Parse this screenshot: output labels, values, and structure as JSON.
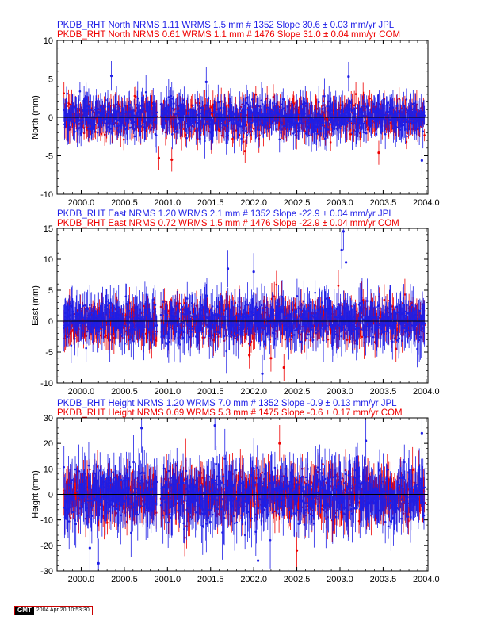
{
  "colors": {
    "jpl": "#1e1ee6",
    "com": "#ee0000",
    "axis": "#000000"
  },
  "gmt": {
    "logo": "GMT",
    "timestamp": "2004 Apr 20 10:53:30"
  },
  "chart_data": [
    {
      "type": "scatter",
      "id": "north",
      "title_jpl": "PKDB_RHT North NRMS 1.11 WRMS  1.5 mm # 1352 Slope   30.6 ±  0.03 mm/yr JPL",
      "title_com": "PKDB_RHT North NRMS 0.61 WRMS  1.1 mm # 1476 Slope   31.0 ±  0.04 mm/yr COM",
      "ylabel": "North (mm)",
      "xlim": [
        1999.72,
        2004.02
      ],
      "ylim": [
        -10,
        10
      ],
      "yticks": [
        -10,
        -5,
        0,
        5,
        10
      ],
      "xticks": [
        "2000.0",
        "2000.5",
        "2001.0",
        "2001.5",
        "2002.0",
        "2002.5",
        "2003.0",
        "2003.5",
        "2004.0"
      ],
      "x_start": 1999.8,
      "x_end": 2003.98,
      "gap": [
        1999.85,
        2000.92
      ],
      "series": [
        {
          "name": "COM",
          "scatter_rms": 1.5,
          "errorbar": 1.3,
          "extremes": [
            [
              2000.9,
              -5.3
            ],
            [
              2001.05,
              -5.5
            ],
            [
              2001.9,
              -4.4
            ],
            [
              2003.45,
              -4.6
            ]
          ]
        },
        {
          "name": "JPL",
          "scatter_rms": 1.5,
          "errorbar": 1.6,
          "extremes": [
            [
              2000.35,
              5.4
            ],
            [
              2001.45,
              4.6
            ],
            [
              2003.1,
              5.3
            ],
            [
              2003.95,
              -5.6
            ]
          ]
        }
      ]
    },
    {
      "type": "scatter",
      "id": "east",
      "title_jpl": "PKDB_RHT East NRMS 1.20 WRMS  2.1 mm # 1352 Slope  -22.9 ±  0.04 mm/yr JPL",
      "title_com": "PKDB_RHT East NRMS 0.72 WRMS  1.5 mm # 1476 Slope  -22.9 ±  0.04 mm/yr COM",
      "ylabel": "East (mm)",
      "xlim": [
        1999.72,
        2004.02
      ],
      "ylim": [
        -10,
        15
      ],
      "yticks": [
        -10,
        -5,
        0,
        5,
        10,
        15
      ],
      "xticks": [
        "2000.0",
        "2000.5",
        "2001.0",
        "2001.5",
        "2002.0",
        "2002.5",
        "2003.0",
        "2003.5",
        "2004.0"
      ],
      "x_start": 1999.8,
      "x_end": 2003.98,
      "gap": [
        1999.85,
        2000.92
      ],
      "series": [
        {
          "name": "COM",
          "scatter_rms": 2.0,
          "errorbar": 1.8,
          "extremes": [
            [
              2002.2,
              -6.0
            ],
            [
              2002.35,
              -7.5
            ],
            [
              2001.95,
              -5.5
            ],
            [
              2003.65,
              -4.5
            ]
          ]
        },
        {
          "name": "JPL",
          "scatter_rms": 2.2,
          "errorbar": 2.5,
          "extremes": [
            [
              2003.04,
              14.5
            ],
            [
              2003.02,
              11.5
            ],
            [
              2003.07,
              9.5
            ],
            [
              2002.0,
              8.0
            ],
            [
              2001.7,
              8.5
            ],
            [
              2002.1,
              -8.5
            ]
          ]
        }
      ]
    },
    {
      "type": "scatter",
      "id": "height",
      "title_jpl": "PKDB_RHT Height NRMS 1.20 WRMS  7.0 mm # 1352 Slope   -0.9 ±  0.13 mm/yr JPL",
      "title_com": "PKDB_RHT Height NRMS 0.69 WRMS  5.3 mm # 1475 Slope   -0.6 ±  0.17 mm/yr COM",
      "ylabel": "Height (mm)",
      "xlim": [
        1999.72,
        2004.02
      ],
      "ylim": [
        -30,
        30
      ],
      "yticks": [
        -30,
        -20,
        -10,
        0,
        10,
        20,
        30
      ],
      "xticks": [
        "2000.0",
        "2000.5",
        "2001.0",
        "2001.5",
        "2002.0",
        "2002.5",
        "2003.0",
        "2003.5",
        "2004.0"
      ],
      "x_start": 1999.8,
      "x_end": 2003.98,
      "gap": [
        1999.85,
        2000.92
      ],
      "series": [
        {
          "name": "COM",
          "scatter_rms": 5.5,
          "errorbar": 6.0,
          "extremes": [
            [
              2002.5,
              -22
            ],
            [
              2002.3,
              20
            ],
            [
              2001.2,
              -17
            ]
          ]
        },
        {
          "name": "JPL",
          "scatter_rms": 7.0,
          "errorbar": 8.0,
          "extremes": [
            [
              2000.2,
              -27
            ],
            [
              2000.1,
              -21
            ],
            [
              2000.7,
              26
            ],
            [
              2001.55,
              27
            ],
            [
              2002.05,
              -26
            ],
            [
              2003.3,
              21
            ],
            [
              2003.95,
              24
            ]
          ]
        }
      ]
    }
  ]
}
